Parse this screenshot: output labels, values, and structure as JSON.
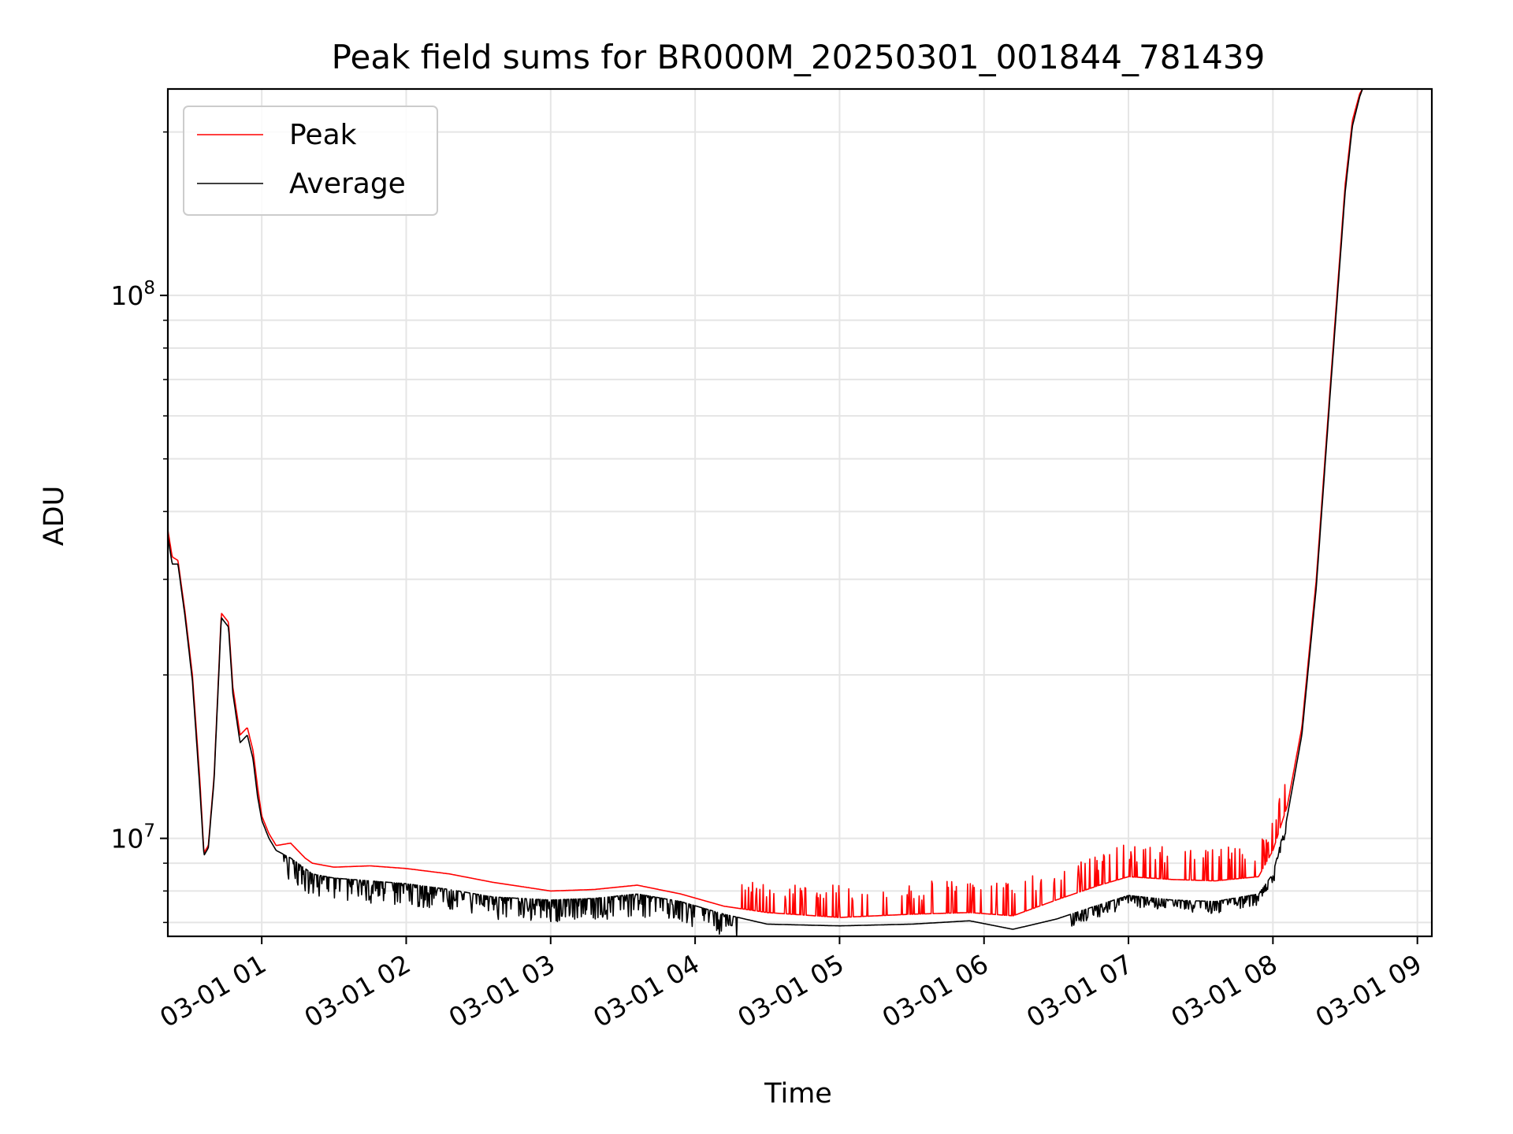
{
  "chart_data": {
    "type": "line",
    "title": "Peak field sums for BR000M_20250301_001844_781439",
    "xlabel": "Time",
    "ylabel": "ADU",
    "x_unit": "time of day on 2025-03-01 (hours)",
    "xlim": [
      0.35,
      9.1
    ],
    "ylim": [
      6600000,
      240000000
    ],
    "yscale": "log",
    "grid": true,
    "legend_position": "top-left",
    "x_ticks": [
      {
        "value": 1,
        "label": "03-01 01"
      },
      {
        "value": 2,
        "label": "03-01 02"
      },
      {
        "value": 3,
        "label": "03-01 03"
      },
      {
        "value": 4,
        "label": "03-01 04"
      },
      {
        "value": 5,
        "label": "03-01 05"
      },
      {
        "value": 6,
        "label": "03-01 06"
      },
      {
        "value": 7,
        "label": "03-01 07"
      },
      {
        "value": 8,
        "label": "03-01 08"
      },
      {
        "value": 9,
        "label": "03-01 09"
      }
    ],
    "y_ticks": [
      {
        "value": 10000000,
        "base": "10",
        "exp": "7"
      },
      {
        "value": 100000000,
        "base": "10",
        "exp": "8"
      }
    ],
    "series": [
      {
        "name": "Peak",
        "color": "#ff0000",
        "x": [
          0.35,
          0.38,
          0.42,
          0.47,
          0.52,
          0.57,
          0.6,
          0.63,
          0.67,
          0.72,
          0.77,
          0.8,
          0.85,
          0.9,
          0.94,
          0.97,
          1.0,
          1.05,
          1.1,
          1.2,
          1.3,
          1.35,
          1.5,
          1.75,
          2.0,
          2.3,
          2.6,
          3.0,
          3.3,
          3.6,
          3.9,
          4.2,
          4.5,
          5.0,
          5.5,
          5.9,
          6.2,
          6.5,
          6.8,
          7.0,
          7.3,
          7.6,
          7.9,
          8.0,
          8.1,
          8.2,
          8.3,
          8.4,
          8.5,
          8.55,
          8.6,
          8.62
        ],
        "values": [
          37000000,
          33000000,
          32500000,
          26000000,
          20000000,
          13000000,
          9400000,
          9700000,
          13000000,
          26000000,
          25000000,
          19000000,
          15500000,
          16000000,
          14500000,
          12500000,
          11000000,
          10200000,
          9700000,
          9800000,
          9200000,
          9000000,
          8850000,
          8900000,
          8800000,
          8600000,
          8300000,
          8000000,
          8050000,
          8200000,
          7900000,
          7500000,
          7300000,
          7150000,
          7250000,
          7300000,
          7200000,
          7700000,
          8200000,
          8500000,
          8400000,
          8350000,
          8500000,
          9500000,
          11500000,
          16000000,
          30000000,
          70000000,
          160000000,
          210000000,
          235000000,
          240000000
        ]
      },
      {
        "name": "Average",
        "color": "#000000",
        "x": [
          0.35,
          0.38,
          0.42,
          0.47,
          0.52,
          0.57,
          0.6,
          0.63,
          0.67,
          0.72,
          0.77,
          0.8,
          0.85,
          0.9,
          0.94,
          0.97,
          1.0,
          1.05,
          1.1,
          1.2,
          1.3,
          1.35,
          1.5,
          1.75,
          2.0,
          2.3,
          2.6,
          3.0,
          3.3,
          3.6,
          3.9,
          4.2,
          4.5,
          5.0,
          5.5,
          5.9,
          6.2,
          6.5,
          6.8,
          7.0,
          7.3,
          7.6,
          7.9,
          8.0,
          8.1,
          8.2,
          8.3,
          8.4,
          8.5,
          8.55,
          8.6,
          8.62
        ],
        "values": [
          36000000,
          32000000,
          32000000,
          25500000,
          19500000,
          12500000,
          9300000,
          9600000,
          12800000,
          25500000,
          24500000,
          18500000,
          15000000,
          15500000,
          14000000,
          12000000,
          10800000,
          10000000,
          9500000,
          9200000,
          8800000,
          8600000,
          8450000,
          8350000,
          8250000,
          8050000,
          7800000,
          7700000,
          7750000,
          7900000,
          7650000,
          7250000,
          6950000,
          6900000,
          6950000,
          7050000,
          6800000,
          7100000,
          7550000,
          7850000,
          7700000,
          7650000,
          7900000,
          8600000,
          11000000,
          15500000,
          29000000,
          68000000,
          155000000,
          205000000,
          232000000,
          240000000
        ]
      }
    ]
  }
}
